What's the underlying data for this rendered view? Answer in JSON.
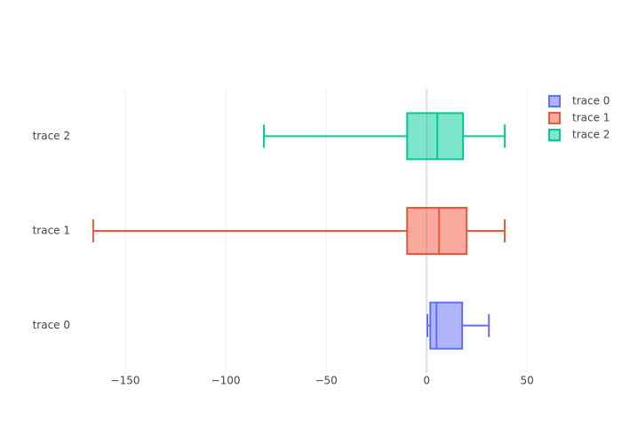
{
  "chart_data": {
    "type": "box",
    "orientation": "horizontal",
    "series": [
      {
        "name": "trace 0",
        "color": "#636efa",
        "min": 0.4,
        "q1": 1.8,
        "median": 4.9,
        "q3": 17.7,
        "max": 31
      },
      {
        "name": "trace 1",
        "color": "#ef553b",
        "min": -166,
        "q1": -9.7,
        "median": 6.2,
        "q3": 19.9,
        "max": 38.9
      },
      {
        "name": "trace 2",
        "color": "#00cc96",
        "min": -81,
        "q1": -9.7,
        "median": 5.3,
        "q3": 18.1,
        "max": 38.9
      }
    ],
    "xlim": [
      -177,
      57
    ],
    "xticks": [
      {
        "value": -150,
        "label": "−150"
      },
      {
        "value": -100,
        "label": "−100"
      },
      {
        "value": -50,
        "label": "−50"
      },
      0,
      50
    ],
    "grid": true,
    "legend": "top-right"
  }
}
